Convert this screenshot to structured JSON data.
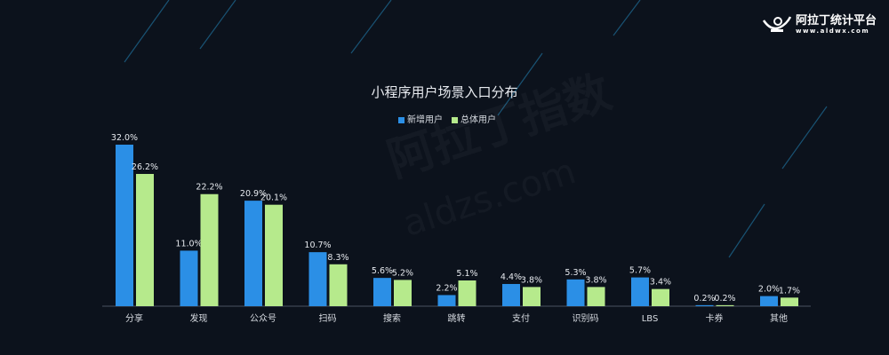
{
  "brand": {
    "name": "阿拉丁统计平台",
    "url": "www.aldwx.com",
    "watermark": "阿拉丁指数",
    "watermark_url": "aldzs.com"
  },
  "chart_data": {
    "type": "bar",
    "title": "小程序用户场景入口分布",
    "categories": [
      "分享",
      "发现",
      "公众号",
      "扫码",
      "搜索",
      "跳转",
      "支付",
      "识别码",
      "LBS",
      "卡券",
      "其他"
    ],
    "series": [
      {
        "name": "新增用户",
        "color": "#2b8fe6",
        "values": [
          32.0,
          11.0,
          20.9,
          10.7,
          5.6,
          2.2,
          4.4,
          5.3,
          5.7,
          0.2,
          2.0
        ]
      },
      {
        "name": "总体用户",
        "color": "#b6ea8c",
        "values": [
          26.2,
          22.2,
          20.1,
          8.3,
          5.2,
          5.1,
          3.8,
          3.8,
          3.4,
          0.2,
          1.7
        ]
      }
    ],
    "unit": "%",
    "xlabel": "",
    "ylabel": "",
    "ylim": [
      0,
      32
    ],
    "grid": false,
    "legend": "top-center"
  }
}
